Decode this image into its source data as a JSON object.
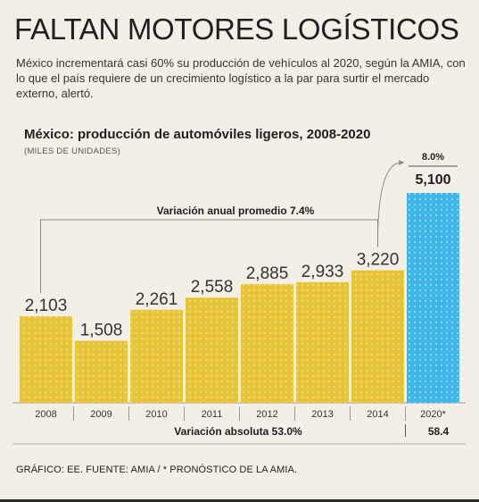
{
  "headline": "FALTAN MOTORES LOGÍSTICOS",
  "lede": "México incrementará casi 60% su producción de vehículos al 2020, según la AMIA, con lo que el país requiere de un crecimiento logístico a la par para surtir el mercado externo, alertó.",
  "source": "GRÁFICO: EE. FUENTE: AMIA / * PRONÓSTICO DE LA AMIA.",
  "colors": {
    "bar_actual": "#e6c53a",
    "bar_forecast": "#3fb5e8",
    "text_dark": "#1f1f1f",
    "bracket": "#8a8a8a"
  },
  "chart_data": {
    "type": "bar",
    "title": "México: producción de automóviles ligeros, 2008-2020",
    "unit_label": "(MILES DE UNIDADES)",
    "categories": [
      "2008",
      "2009",
      "2010",
      "2011",
      "2012",
      "2013",
      "2014",
      "2020*"
    ],
    "values": [
      2103,
      1508,
      2261,
      2558,
      2885,
      2933,
      3220,
      5100
    ],
    "value_labels": [
      "2,103",
      "1,508",
      "2,261",
      "2,558",
      "2,885",
      "2,933",
      "3,220",
      "5,100"
    ],
    "forecast_index": 7,
    "annotations": {
      "annual_variation": "Variación anual promedio 7.4%",
      "absolute_variation": "Variación absoluta 53.0%",
      "forecast_growth": "8.0%",
      "forecast_absolute": "58.4"
    },
    "xlabel": "",
    "ylabel": "",
    "ylim": [
      0,
      5100
    ],
    "grid": false,
    "legend": "none"
  }
}
